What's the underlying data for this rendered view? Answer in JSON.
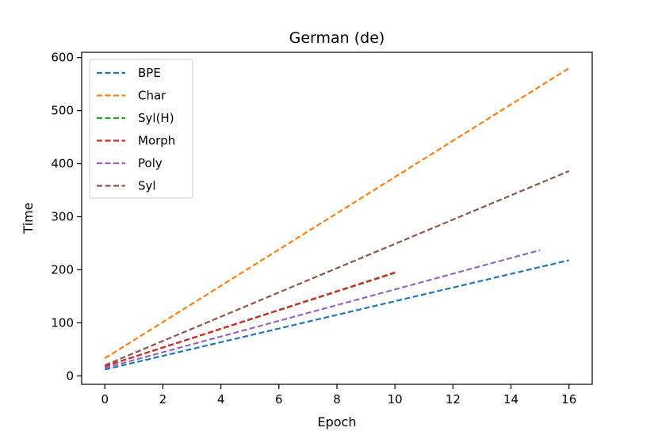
{
  "chart_data": {
    "type": "line",
    "title": "German (de)",
    "xlabel": "Epoch",
    "ylabel": "Time",
    "xlim": [
      -0.8,
      16.8
    ],
    "ylim": [
      -16,
      610
    ],
    "xticks": [
      0,
      2,
      4,
      6,
      8,
      10,
      12,
      14,
      16
    ],
    "yticks": [
      0,
      100,
      200,
      300,
      400,
      500,
      600
    ],
    "grid": false,
    "legend_position": "top-left",
    "line_style": "dashed",
    "series": [
      {
        "name": "BPE",
        "color": "#1f77b4",
        "x": [
          0,
          16
        ],
        "y": [
          12,
          218
        ]
      },
      {
        "name": "Char",
        "color": "#ff7f0e",
        "x": [
          0,
          16
        ],
        "y": [
          33,
          580
        ]
      },
      {
        "name": "Syl(H)",
        "color": "#2ca02c",
        "x": [
          0,
          10
        ],
        "y": [
          18,
          194
        ]
      },
      {
        "name": "Morph",
        "color": "#d62728",
        "x": [
          0,
          10
        ],
        "y": [
          18,
          195
        ]
      },
      {
        "name": "Poly",
        "color": "#9467bd",
        "x": [
          0,
          15
        ],
        "y": [
          15,
          237
        ]
      },
      {
        "name": "Syl",
        "color": "#8c564b",
        "x": [
          0,
          16
        ],
        "y": [
          20,
          386
        ]
      }
    ]
  }
}
